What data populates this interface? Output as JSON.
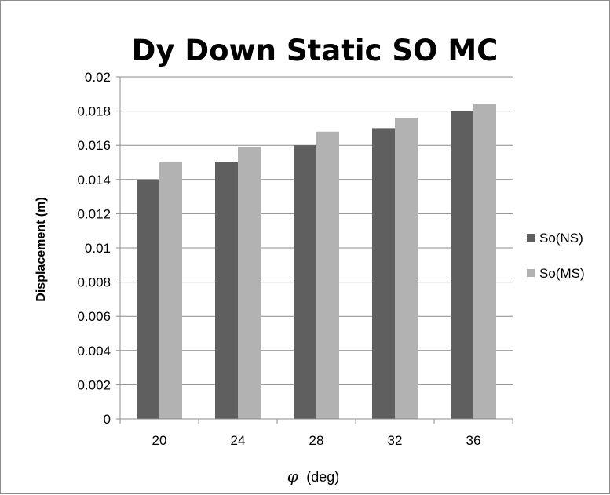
{
  "chart_data": {
    "type": "bar",
    "title": "Dy Down Static SO MC",
    "xlabel_symbol": "φ",
    "xlabel": "(deg)",
    "ylabel": "Displacement (m)",
    "categories": [
      "20",
      "24",
      "28",
      "32",
      "36"
    ],
    "series": [
      {
        "name": "So(NS)",
        "color": "#5f5f5f",
        "values": [
          0.014,
          0.015,
          0.016,
          0.017,
          0.018
        ]
      },
      {
        "name": "So(MS)",
        "color": "#b2b2b2",
        "values": [
          0.015,
          0.0159,
          0.0168,
          0.0176,
          0.0184
        ]
      }
    ],
    "ylim": [
      0,
      0.02
    ],
    "yticks": [
      "0",
      "0.002",
      "0.004",
      "0.006",
      "0.008",
      "0.01",
      "0.012",
      "0.014",
      "0.016",
      "0.018",
      "0.02"
    ],
    "grid": true,
    "legend_position": "right",
    "gridline_color": "#8c8c8c"
  }
}
